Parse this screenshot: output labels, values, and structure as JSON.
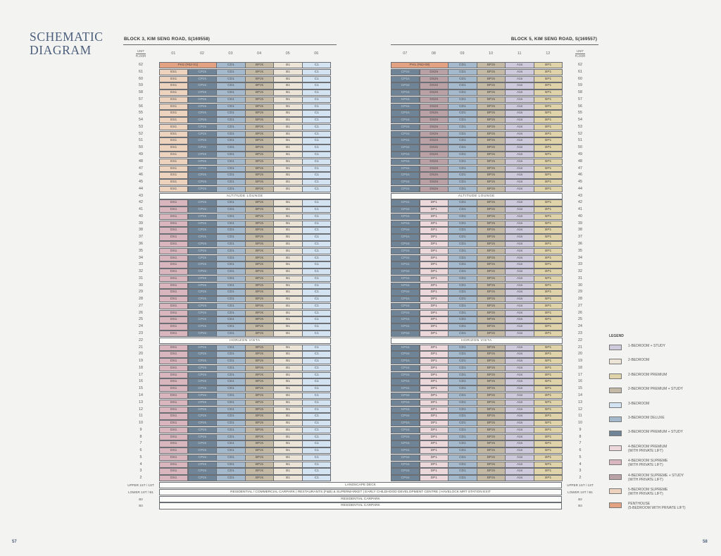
{
  "title_line1": "SCHEMATIC",
  "title_line2": "DIAGRAM",
  "unit_header": "UNIT",
  "floor_header": "FLOOR",
  "unit_colors": {
    "A1s": "#cfc9dc",
    "B1": "#ece4d7",
    "BP1": "#e1d3a9",
    "BP2s": "#c3b9a5",
    "C1": "#d4e3f1",
    "CD1": "#a5b9cd",
    "CP1s": "#6f8597",
    "CP2s": "#6f8597",
    "DP1": "#ecd7db",
    "DS1": "#d9b5be",
    "DS2s": "#baa1a6",
    "ES1": "#edd3be",
    "PH": "#e3a383"
  },
  "dark_units": [
    "CP1s",
    "CP2s"
  ],
  "block3": {
    "title": "BLOCK 3, KIM SENG ROAD, S(169558)",
    "columns": [
      "01",
      "02",
      "03",
      "04",
      "05",
      "06"
    ],
    "groups": [
      {
        "from": 62,
        "to": 62,
        "cells": [
          {
            "label": "PH2 (#62-01)",
            "type": "PH",
            "span": 2
          },
          "CD1",
          "BP2s",
          "B1",
          "C1"
        ]
      },
      {
        "from": 61,
        "to": 44,
        "cells": [
          "ES1",
          "CP2s",
          "CD1",
          "BP2s",
          "B1",
          "C1"
        ]
      },
      {
        "from": 43,
        "to": 43,
        "amenity": "ALTITUDE LOUNGE"
      },
      {
        "from": 42,
        "to": 23,
        "cells": [
          "DS1",
          "CP2s",
          "CD1",
          "BP2s",
          "B1",
          "C1"
        ]
      },
      {
        "from": 22,
        "to": 22,
        "amenity": "HORIZON VISTA"
      },
      {
        "from": 21,
        "to": 2,
        "cells": [
          "DS1",
          "CP2s",
          "CD1",
          "BP2s",
          "B1",
          "C1"
        ]
      }
    ]
  },
  "block5": {
    "title": "BLOCK 5, KIM SENG ROAD, S(169557)",
    "columns": [
      "07",
      "08",
      "09",
      "10",
      "11",
      "12"
    ],
    "groups": [
      {
        "from": 62,
        "to": 62,
        "cells": [
          {
            "label": "PH1 (#62-08)",
            "type": "PH",
            "span": 2
          },
          "CD1",
          "BP2s",
          "A1s",
          "BP1"
        ]
      },
      {
        "from": 61,
        "to": 44,
        "cells": [
          "CP1s",
          "DS2s",
          "CD1",
          "BP2s",
          "A1s",
          "BP1"
        ]
      },
      {
        "from": 43,
        "to": 43,
        "amenity": "ALTITUDE LOUNGE"
      },
      {
        "from": 42,
        "to": 23,
        "cells": [
          "CP1s",
          "DP1",
          "CD1",
          "BP2s",
          "A1s",
          "BP1"
        ]
      },
      {
        "from": 22,
        "to": 22,
        "amenity": "HORIZON VISTA"
      },
      {
        "from": 21,
        "to": 2,
        "cells": [
          "CP1s",
          "DP1",
          "CD1",
          "BP2s",
          "A1s",
          "BP1"
        ]
      }
    ]
  },
  "lower_levels": [
    {
      "level": "UPPER 1ST / 1ST",
      "text": "LANDSCAPE DECK"
    },
    {
      "level": "LOWER 1ST / B1",
      "text": "RESIDENTIAL / COMMERCIAL CARPARK  |  RESTAURANTS (F&B) & SUPERMARKET  |  EARLY CHILDHOOD DEVELOPMENT CENTRE  |  HAVELOCK MRT STATION EXIT"
    },
    {
      "level": "B2",
      "text": "RESIDENTIAL CARPARK"
    },
    {
      "level": "B3",
      "text": "RESIDENTIAL CARPARK"
    }
  ],
  "legend": {
    "title": "LEGEND",
    "items": [
      {
        "label": "1-BEDROOM + STUDY",
        "color": "#cfc9dc"
      },
      {
        "label": "2-BEDROOM",
        "color": "#ece4d7"
      },
      {
        "label": "2-BEDROOM PREMIUM",
        "color": "#e1d3a9"
      },
      {
        "label": "2-BEDROOM PREMIUM + STUDY",
        "color": "#c3b9a5"
      },
      {
        "label": "3-BEDROOM",
        "color": "#d4e3f1"
      },
      {
        "label": "3-BEDROOM DELUXE",
        "color": "#a5b9cd"
      },
      {
        "label": "3-BEDROOM PREMIUM + STUDY",
        "color": "#6f8597"
      },
      {
        "label": "4-BEDROOM PREMIUM\n(WITH PRIVATE LIFT)",
        "color": "#ecd7db"
      },
      {
        "label": "4-BEDROOM SUPREME\n(WITH PRIVATE LIFT)",
        "color": "#d9b5be"
      },
      {
        "label": "4-BEDROOM SUPREME + STUDY\n(WITH PRIVATE LIFT)",
        "color": "#baa1a6"
      },
      {
        "label": "5-BEDROOM SUPREME\n(WITH PRIVATE LIFT)",
        "color": "#edd3be"
      },
      {
        "label": "PENTHOUSE\n(5-BEDROOM WITH PRIVATE LIFT)",
        "color": "#e3a383"
      }
    ]
  },
  "page_left": "57",
  "page_right": "58"
}
